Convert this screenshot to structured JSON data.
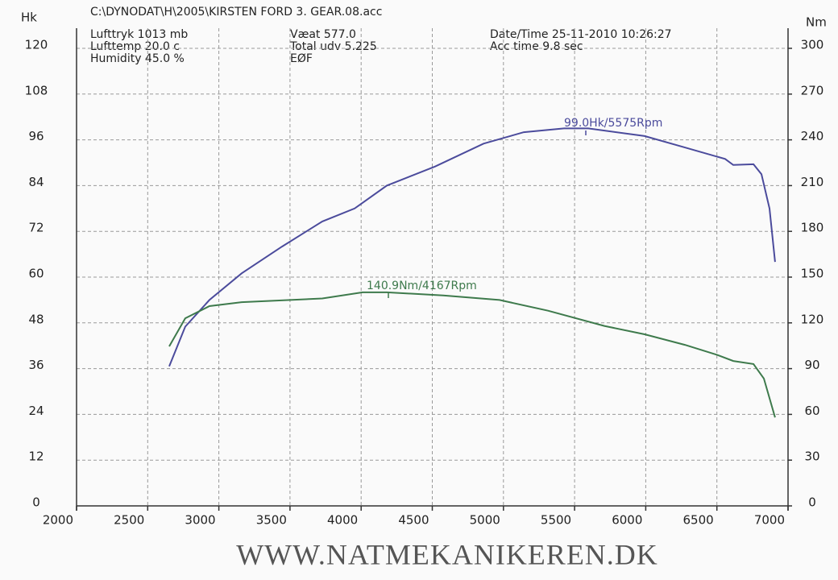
{
  "chart_data": {
    "type": "line",
    "subtitle": "C:\\DYNODAT\\H\\2005\\KIRSTEN FORD 3. GEAR.08.acc",
    "ylabel": "Hk",
    "y2label": "Nm",
    "notes": [
      "Lufttryk 1013 mb",
      "Lufttemp 20.0 c",
      "Humidity 45.0 %",
      "Væat 577.0",
      "Total udv 5.225",
      "EØF",
      "Date/Time 25-11-2010 10:26:27",
      "Acc time 9.8 sec"
    ],
    "annotations": [
      "99.0Hk/5575Rpm",
      "140.9Nm/4167Rpm"
    ],
    "source": "WWW.NATMEKANIKEREN.DK",
    "xlim": [
      2000,
      7000
    ],
    "xticks": [
      2000,
      2500,
      3000,
      3500,
      4000,
      4500,
      5000,
      5500,
      6000,
      6500,
      7000
    ],
    "ylim": [
      0,
      120
    ],
    "yticks": [
      0,
      12,
      24,
      36,
      48,
      60,
      72,
      84,
      96,
      108,
      120
    ],
    "y2lim": [
      0,
      300
    ],
    "y2ticks": [
      0,
      30,
      60,
      90,
      120,
      150,
      180,
      210,
      240,
      270,
      300
    ],
    "grid": true,
    "series": [
      {
        "color": "#4b4b9c",
        "x": [
          2651,
          2764,
          2934,
          3160,
          3444,
          3727,
          3954,
          4180,
          4520,
          4860,
          5143,
          5426,
          5596,
          5992,
          6275,
          6558,
          6615,
          6757,
          6813,
          6870,
          6909
        ],
        "values": [
          36.6,
          47,
          54,
          61,
          68,
          74.6,
          78,
          84,
          89,
          95,
          98,
          99,
          99,
          97,
          94,
          91,
          89.4,
          89.6,
          87,
          78,
          64
        ]
      },
      {
        "color": "#3e7a4c",
        "axis": "y2",
        "x": [
          2651,
          2764,
          2934,
          3160,
          3727,
          4010,
          4180,
          4577,
          4973,
          5313,
          5709,
          5992,
          6275,
          6502,
          6615,
          6757,
          6830,
          6909
        ],
        "values": [
          104.6,
          123,
          131,
          133.6,
          136,
          140,
          140,
          138,
          135,
          128,
          118,
          112.5,
          105.6,
          99,
          95,
          93,
          83.5,
          58
        ]
      }
    ]
  }
}
